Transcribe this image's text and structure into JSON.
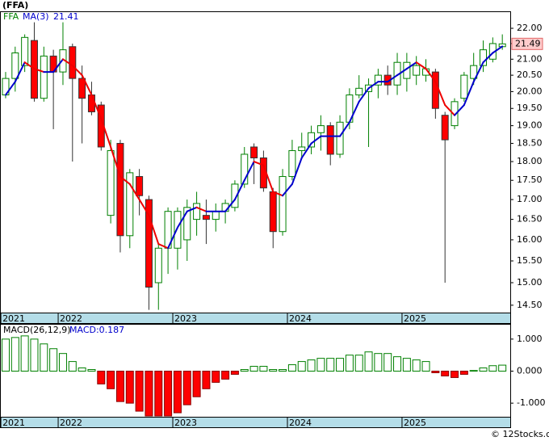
{
  "chart_data": [
    {
      "type": "candlestick",
      "title": "(FFA)",
      "log_scale": true,
      "xlim": [
        -0.59,
        52.83
      ],
      "ylim": [
        14.34,
        22.57
      ],
      "xticks": [
        {
          "value": -0.5,
          "label": "2021"
        },
        {
          "value": 5.5,
          "label": "2022"
        },
        {
          "value": 17.5,
          "label": "2023"
        },
        {
          "value": 29.5,
          "label": "2024"
        },
        {
          "value": 41.5,
          "label": "2025"
        }
      ],
      "yticks": [
        {
          "value": 22,
          "label": "22.00"
        },
        {
          "value": 21.5,
          "label": "21.50"
        },
        {
          "value": 21,
          "label": "21.00"
        },
        {
          "value": 20.5,
          "label": "20.50"
        },
        {
          "value": 20,
          "label": "20.00"
        },
        {
          "value": 19.5,
          "label": "19.50"
        },
        {
          "value": 19,
          "label": "19.00"
        },
        {
          "value": 18.5,
          "label": "18.50"
        },
        {
          "value": 18,
          "label": "18.00"
        },
        {
          "value": 17.5,
          "label": "17.50"
        },
        {
          "value": 17,
          "label": "17.00"
        },
        {
          "value": 16.5,
          "label": "16.50"
        },
        {
          "value": 16,
          "label": "16.00"
        },
        {
          "value": 15.5,
          "label": "15.50"
        },
        {
          "value": 15,
          "label": "15.00"
        },
        {
          "value": 14.5,
          "label": "14.50"
        }
      ],
      "series": [
        {
          "name": "FFA",
          "color": "#008000",
          "down_color": "#ff0000",
          "open": [
            19.9,
            20.4,
            20.8,
            21.6,
            19.8,
            21.1,
            20.6,
            21.4,
            20.4,
            19.9,
            19.6,
            16.6,
            18.5,
            16.1,
            17.6,
            17.0,
            15.0,
            15.8,
            15.8,
            16.0,
            16.5,
            16.6,
            16.5,
            16.7,
            16.8,
            17.4,
            18.4,
            18.1,
            17.2,
            16.2,
            17.6,
            18.3,
            18.4,
            18.8,
            19.0,
            18.2,
            19.1,
            19.9,
            20.0,
            20.2,
            20.5,
            20.2,
            20.4,
            20.5,
            20.5,
            20.6,
            19.3,
            19.0,
            19.8,
            20.4,
            20.8,
            21.0,
            21.4
          ],
          "high": [
            20.6,
            21.4,
            21.8,
            22.2,
            21.4,
            21.3,
            22.2,
            21.5,
            20.8,
            20.3,
            19.7,
            18.6,
            18.6,
            17.8,
            17.8,
            17.1,
            15.9,
            16.8,
            16.8,
            17.0,
            17.2,
            17.0,
            16.9,
            17.0,
            17.5,
            18.4,
            18.5,
            18.3,
            17.3,
            17.8,
            18.6,
            18.8,
            19.0,
            19.3,
            19.1,
            19.3,
            20.1,
            20.5,
            20.4,
            20.7,
            20.8,
            21.2,
            21.2,
            21.1,
            21.0,
            20.7,
            19.4,
            19.8,
            20.6,
            21.2,
            21.6,
            21.7,
            21.8
          ],
          "low": [
            19.8,
            20.0,
            20.6,
            19.7,
            19.7,
            18.9,
            20.2,
            18.0,
            18.5,
            19.3,
            18.3,
            16.4,
            15.7,
            15.8,
            16.6,
            14.4,
            14.4,
            15.2,
            15.3,
            15.5,
            16.1,
            15.9,
            16.2,
            16.4,
            16.7,
            17.3,
            17.4,
            17.2,
            15.8,
            16.1,
            17.5,
            18.1,
            18.2,
            18.3,
            17.9,
            18.1,
            18.9,
            19.8,
            18.4,
            19.8,
            19.9,
            19.9,
            20.0,
            20.2,
            20.3,
            19.2,
            15.0,
            18.9,
            19.7,
            20.2,
            20.6,
            20.9,
            21.3
          ],
          "close": [
            20.4,
            21.2,
            21.7,
            19.8,
            21.1,
            20.6,
            21.3,
            20.4,
            19.8,
            19.4,
            18.4,
            18.3,
            16.1,
            17.7,
            17.1,
            14.9,
            15.8,
            16.7,
            16.7,
            16.8,
            16.9,
            16.5,
            16.7,
            16.9,
            17.4,
            18.2,
            18.1,
            17.3,
            16.2,
            17.6,
            18.3,
            18.4,
            18.8,
            19.0,
            18.2,
            19.1,
            19.9,
            20.1,
            20.2,
            20.5,
            20.2,
            20.9,
            20.9,
            20.8,
            20.7,
            19.5,
            18.6,
            19.7,
            20.5,
            20.8,
            21.3,
            21.5,
            21.49
          ]
        }
      ],
      "ma": {
        "name": "MA(3)",
        "up_color": "#0000cc",
        "down_color": "#ee0000",
        "values": [
          19.9,
          20.3,
          20.9,
          20.7,
          20.6,
          20.6,
          21.0,
          20.8,
          20.5,
          19.9,
          19.2,
          18.4,
          17.6,
          17.4,
          17.0,
          16.6,
          15.9,
          15.8,
          16.3,
          16.7,
          16.8,
          16.7,
          16.7,
          16.7,
          17.0,
          17.5,
          18.0,
          17.9,
          17.2,
          17.1,
          17.4,
          18.1,
          18.5,
          18.7,
          18.7,
          18.7,
          19.1,
          19.7,
          20.1,
          20.3,
          20.3,
          20.5,
          20.7,
          20.9,
          20.7,
          20.3,
          19.6,
          19.3,
          19.6,
          20.3,
          20.9,
          21.2,
          21.41
        ]
      }
    },
    {
      "type": "bar",
      "title": "MACD(26,12,9)",
      "legend_label": "MACD:0.187",
      "xlim": [
        -0.59,
        52.83
      ],
      "ylim": [
        -1.425,
        1.475
      ],
      "xticks": [
        {
          "value": -0.5,
          "label": "2021"
        },
        {
          "value": 5.5,
          "label": "2022"
        },
        {
          "value": 17.5,
          "label": "2023"
        },
        {
          "value": 29.5,
          "label": "2024"
        },
        {
          "value": 41.5,
          "label": "2025"
        }
      ],
      "yticks": [
        {
          "value": 1,
          "label": "1.000"
        },
        {
          "value": 0,
          "label": "0.000"
        },
        {
          "value": -1,
          "label": "-1.000"
        }
      ],
      "series": [
        {
          "name": "MACD",
          "color": "#008000",
          "down_color": "#ff0000",
          "values": [
            1.0,
            1.05,
            1.1,
            1.0,
            0.85,
            0.7,
            0.55,
            0.3,
            0.1,
            0.05,
            -0.4,
            -0.55,
            -0.95,
            -1.0,
            -1.25,
            -1.4,
            -1.4,
            -1.4,
            -1.3,
            -1.05,
            -0.8,
            -0.55,
            -0.35,
            -0.25,
            -0.1,
            0.05,
            0.15,
            0.15,
            0.05,
            0.05,
            0.2,
            0.3,
            0.35,
            0.4,
            0.4,
            0.4,
            0.5,
            0.5,
            0.6,
            0.55,
            0.55,
            0.45,
            0.4,
            0.35,
            0.3,
            -0.05,
            -0.15,
            -0.2,
            -0.1,
            0.02,
            0.1,
            0.17,
            0.187
          ]
        }
      ]
    }
  ],
  "footer": "© 12Stocks.com"
}
